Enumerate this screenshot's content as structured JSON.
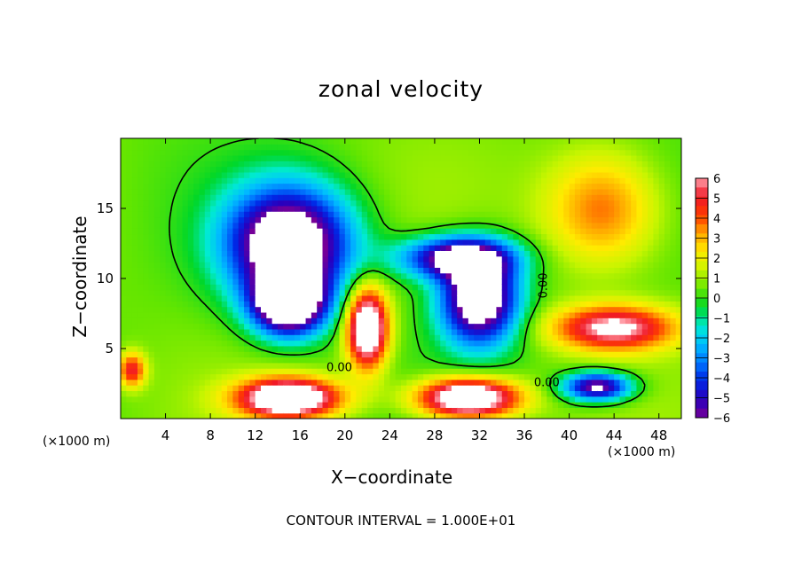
{
  "chart_data": {
    "type": "heatmap",
    "title": "zonal velocity",
    "xlabel": "X−coordinate",
    "ylabel": "Z−coordinate",
    "x_unit_left": "(×1000 m)",
    "x_unit_right": "(×1000 m)",
    "xlim": [
      0,
      50
    ],
    "ylim": [
      0,
      20
    ],
    "x_ticks": [
      4,
      8,
      12,
      16,
      20,
      24,
      28,
      32,
      36,
      40,
      44,
      48
    ],
    "y_ticks": [
      5,
      10,
      15
    ],
    "colorbar": {
      "range": [
        -6,
        6
      ],
      "ticks": [
        6,
        5,
        4,
        3,
        2,
        1,
        0,
        -1,
        -2,
        -3,
        -4,
        -5,
        -6
      ],
      "tick_labels": [
        "6",
        "5",
        "4",
        "3",
        "2",
        "1",
        "0",
        "−1",
        "−2",
        "−3",
        "−4",
        "−5",
        "−6"
      ],
      "out_of_range_color": "#ffffff"
    },
    "contour_labels": [
      "0.00",
      "0.00",
      "0.00"
    ],
    "features": [
      {
        "kind": "negative",
        "x": 15,
        "z": 12.5,
        "value": -9,
        "sx": 5.5,
        "sz": 4.0
      },
      {
        "kind": "negative",
        "x": 15,
        "z": 8.2,
        "value": -9,
        "sx": 3.2,
        "sz": 2.2
      },
      {
        "kind": "negative",
        "x": 32,
        "z": 8.5,
        "value": -8.5,
        "sx": 3.5,
        "sz": 3.2
      },
      {
        "kind": "negative",
        "x": 30,
        "z": 11.5,
        "value": -7,
        "sx": 5.0,
        "sz": 1.5
      },
      {
        "kind": "negative",
        "x": 42.5,
        "z": 2.3,
        "value": -7,
        "sx": 3.0,
        "sz": 1.0
      },
      {
        "kind": "positive",
        "x": 22,
        "z": 6.5,
        "value": 8.5,
        "sx": 1.8,
        "sz": 2.8
      },
      {
        "kind": "positive",
        "x": 15,
        "z": 1.5,
        "value": 8.5,
        "sx": 4.5,
        "sz": 1.4
      },
      {
        "kind": "positive",
        "x": 31,
        "z": 1.5,
        "value": 8.5,
        "sx": 4.5,
        "sz": 1.4
      },
      {
        "kind": "positive",
        "x": 44,
        "z": 6.5,
        "value": 6,
        "sx": 5.5,
        "sz": 1.6
      },
      {
        "kind": "positive",
        "x": 43,
        "z": 15,
        "value": 3.5,
        "sx": 5.0,
        "sz": 4.0
      },
      {
        "kind": "positive",
        "x": 1,
        "z": 3.5,
        "value": 4.5,
        "sx": 1.2,
        "sz": 1.2
      }
    ],
    "background_value": 0.5
  },
  "footer": {
    "contour_interval": "CONTOUR INTERVAL = 1.000E+01"
  }
}
